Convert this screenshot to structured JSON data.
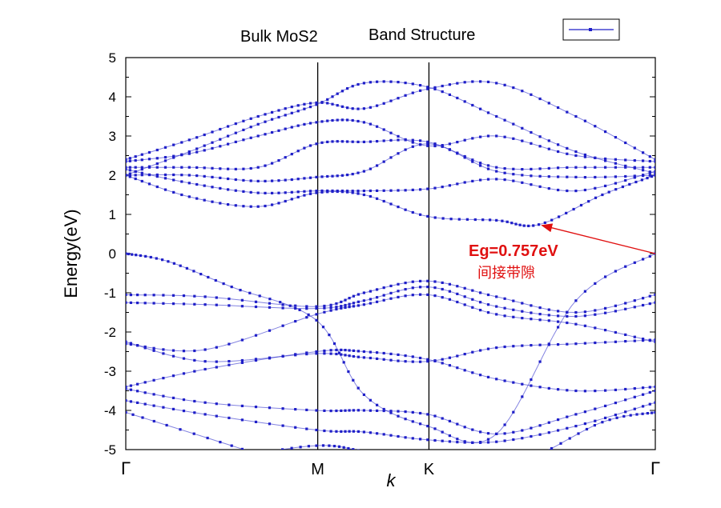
{
  "chart_data": {
    "type": "scatter",
    "title_left": "Bulk MoS2",
    "title_right": "Band Structure",
    "xlabel": "k",
    "ylabel": "Energy(eV)",
    "ylim": [
      -5,
      5
    ],
    "y_ticks": [
      "5",
      "4",
      "3",
      "2",
      "1",
      "0",
      "-1",
      "-2",
      "-3",
      "-4",
      "-5"
    ],
    "x_ticks": [
      {
        "label": "Γ",
        "x": 0
      },
      {
        "label": "M",
        "x": 0.3625
      },
      {
        "label": "K",
        "x": 0.5725
      },
      {
        "label": "Γ",
        "x": 1
      }
    ],
    "grid": false,
    "legend_position": "top-right",
    "series_color": "#1f1fc8",
    "annotation_color": "#e01010",
    "annotation": {
      "text": "Eg=0.757eV",
      "subtext": "间接带隙",
      "arrow_from": [
        1.0,
        0.0
      ],
      "arrow_to": [
        0.78,
        0.74
      ]
    },
    "bands": [
      {
        "name": "band-1",
        "points": [
          [
            0,
            -5.6
          ],
          [
            0.2,
            -5.2
          ],
          [
            0.36,
            -4.9
          ],
          [
            0.45,
            -5.05
          ],
          [
            0.57,
            -5.4
          ],
          [
            0.75,
            -5.2
          ],
          [
            0.9,
            -5.6
          ],
          [
            1,
            -5.7
          ]
        ]
      },
      {
        "name": "band-2",
        "points": [
          [
            0,
            -4.05
          ],
          [
            0.2,
            -4.9
          ],
          [
            0.36,
            -5.6
          ],
          [
            0.45,
            -5.8
          ],
          [
            0.57,
            -5.9
          ],
          [
            0.75,
            -5.3
          ],
          [
            0.9,
            -4.3
          ],
          [
            1,
            -4.05
          ]
        ]
      },
      {
        "name": "band-3",
        "points": [
          [
            0,
            -3.75
          ],
          [
            0.15,
            -4.1
          ],
          [
            0.36,
            -4.5
          ],
          [
            0.45,
            -4.55
          ],
          [
            0.57,
            -4.75
          ],
          [
            0.7,
            -4.8
          ],
          [
            0.85,
            -4.4
          ],
          [
            1,
            -3.8
          ]
        ]
      },
      {
        "name": "band-4",
        "points": [
          [
            0,
            -3.45
          ],
          [
            0.15,
            -3.8
          ],
          [
            0.36,
            -4.0
          ],
          [
            0.45,
            -4.0
          ],
          [
            0.57,
            -4.1
          ],
          [
            0.7,
            -4.6
          ],
          [
            0.85,
            -4.1
          ],
          [
            1,
            -3.5
          ]
        ]
      },
      {
        "name": "band-5",
        "points": [
          [
            0,
            -3.4
          ],
          [
            0.15,
            -2.95
          ],
          [
            0.36,
            -2.5
          ],
          [
            0.45,
            -2.5
          ],
          [
            0.57,
            -2.7
          ],
          [
            0.7,
            -3.2
          ],
          [
            0.85,
            -3.5
          ],
          [
            1,
            -3.4
          ]
        ]
      },
      {
        "name": "band-6",
        "points": [
          [
            0,
            -2.25
          ],
          [
            0.15,
            -2.75
          ],
          [
            0.36,
            -2.55
          ],
          [
            0.45,
            -2.65
          ],
          [
            0.57,
            -2.75
          ],
          [
            0.7,
            -2.4
          ],
          [
            0.85,
            -2.3
          ],
          [
            1,
            -2.2
          ]
        ]
      },
      {
        "name": "band-7",
        "points": [
          [
            0,
            -2.3
          ],
          [
            0.15,
            -2.45
          ],
          [
            0.36,
            -1.55
          ],
          [
            0.45,
            -1.3
          ],
          [
            0.57,
            -1.05
          ],
          [
            0.7,
            -1.55
          ],
          [
            0.85,
            -1.8
          ],
          [
            1,
            -2.25
          ]
        ]
      },
      {
        "name": "band-8",
        "points": [
          [
            0,
            -1.25
          ],
          [
            0.15,
            -1.3
          ],
          [
            0.36,
            -1.4
          ],
          [
            0.45,
            -1.2
          ],
          [
            0.57,
            -0.85
          ],
          [
            0.7,
            -1.35
          ],
          [
            0.85,
            -1.6
          ],
          [
            1,
            -1.25
          ]
        ]
      },
      {
        "name": "band-9",
        "points": [
          [
            0,
            -1.05
          ],
          [
            0.15,
            -1.1
          ],
          [
            0.36,
            -1.35
          ],
          [
            0.45,
            -1.0
          ],
          [
            0.57,
            -0.7
          ],
          [
            0.7,
            -1.1
          ],
          [
            0.85,
            -1.5
          ],
          [
            1,
            -1.05
          ]
        ]
      },
      {
        "name": "band-10",
        "points": [
          [
            0,
            0.0
          ],
          [
            0.08,
            -0.2
          ],
          [
            0.2,
            -0.85
          ],
          [
            0.36,
            -1.7
          ],
          [
            0.45,
            -3.6
          ],
          [
            0.57,
            -4.4
          ],
          [
            0.7,
            -4.6
          ],
          [
            0.85,
            -1.2
          ],
          [
            1,
            0.0
          ]
        ]
      },
      {
        "name": "band-11",
        "points": [
          [
            0,
            2.0
          ],
          [
            0.12,
            1.45
          ],
          [
            0.25,
            1.2
          ],
          [
            0.36,
            1.55
          ],
          [
            0.45,
            1.5
          ],
          [
            0.57,
            0.95
          ],
          [
            0.7,
            0.85
          ],
          [
            0.78,
            0.74
          ],
          [
            0.9,
            1.5
          ],
          [
            1,
            2.0
          ]
        ]
      },
      {
        "name": "band-12",
        "points": [
          [
            0,
            2.15
          ],
          [
            0.12,
            1.8
          ],
          [
            0.25,
            1.55
          ],
          [
            0.36,
            1.6
          ],
          [
            0.45,
            1.6
          ],
          [
            0.57,
            1.65
          ],
          [
            0.7,
            1.9
          ],
          [
            0.85,
            1.6
          ],
          [
            1,
            2.1
          ]
        ]
      },
      {
        "name": "band-13",
        "points": [
          [
            0,
            2.0
          ],
          [
            0.12,
            2.0
          ],
          [
            0.25,
            1.85
          ],
          [
            0.36,
            1.95
          ],
          [
            0.45,
            2.1
          ],
          [
            0.57,
            2.8
          ],
          [
            0.7,
            2.1
          ],
          [
            0.85,
            1.95
          ],
          [
            1,
            2.0
          ]
        ]
      },
      {
        "name": "band-14",
        "points": [
          [
            0,
            2.2
          ],
          [
            0.12,
            2.2
          ],
          [
            0.25,
            2.2
          ],
          [
            0.36,
            2.8
          ],
          [
            0.45,
            2.85
          ],
          [
            0.57,
            2.85
          ],
          [
            0.7,
            2.2
          ],
          [
            0.85,
            2.2
          ],
          [
            1,
            2.2
          ]
        ]
      },
      {
        "name": "band-15",
        "points": [
          [
            0,
            2.35
          ],
          [
            0.12,
            2.55
          ],
          [
            0.25,
            3.0
          ],
          [
            0.36,
            3.35
          ],
          [
            0.45,
            3.35
          ],
          [
            0.57,
            2.75
          ],
          [
            0.7,
            3.0
          ],
          [
            0.85,
            2.5
          ],
          [
            1,
            2.35
          ]
        ]
      },
      {
        "name": "band-16",
        "points": [
          [
            0,
            2.4
          ],
          [
            0.12,
            2.9
          ],
          [
            0.25,
            3.5
          ],
          [
            0.36,
            3.85
          ],
          [
            0.45,
            3.7
          ],
          [
            0.57,
            4.2
          ],
          [
            0.7,
            4.35
          ],
          [
            0.85,
            3.5
          ],
          [
            1,
            2.4
          ]
        ]
      },
      {
        "name": "band-17",
        "points": [
          [
            0,
            2.0
          ],
          [
            0.12,
            2.6
          ],
          [
            0.25,
            3.3
          ],
          [
            0.36,
            3.8
          ],
          [
            0.45,
            4.35
          ],
          [
            0.57,
            4.25
          ],
          [
            0.7,
            3.5
          ],
          [
            0.85,
            2.6
          ],
          [
            1,
            2.05
          ]
        ]
      }
    ]
  }
}
